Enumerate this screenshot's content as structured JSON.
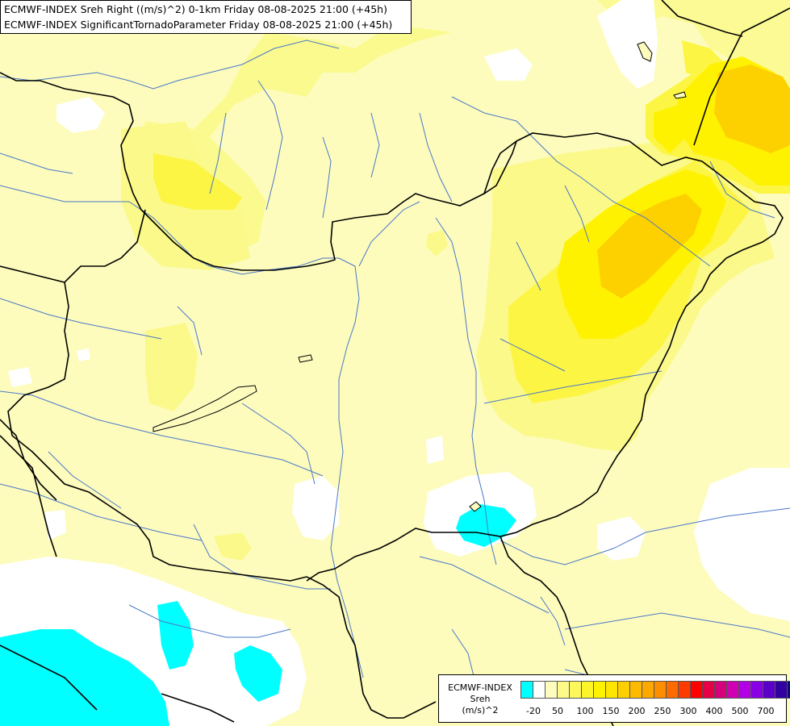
{
  "title": {
    "line1": "ECMWF-INDEX Sreh Right ((m/s)^2) 0-1km Friday 08-08-2025 21:00 (+45h)",
    "line2": "ECMWF-INDEX SignificantTornadoParameter Friday 08-08-2025 21:00 (+45h)"
  },
  "legend": {
    "label_lines": [
      "ECMWF-INDEX",
      "Sreh",
      "(m/s)^2"
    ],
    "colors": [
      "#00ffff",
      "#ffffff",
      "#fdfcbd",
      "#fdfa8a",
      "#fcf85c",
      "#fbf52a",
      "#fff200",
      "#ffe600",
      "#fdcf00",
      "#fcbb00",
      "#fca800",
      "#fc8f00",
      "#fc6a00",
      "#fd3a00",
      "#ff0000",
      "#e60046",
      "#d6007a",
      "#d000b4",
      "#b400e6",
      "#8a00e6",
      "#5a00c8",
      "#3200a0",
      "#0a0a78"
    ],
    "tick_labels": [
      "-20",
      "50",
      "100",
      "150",
      "200",
      "250",
      "300",
      "400",
      "500",
      "700"
    ]
  },
  "map": {
    "background_color": "#fdfcbd",
    "cyan_color": "#00ffff",
    "yellow_light": "#fbf98a",
    "yellow_mid": "#fcf544",
    "yellow_strong": "#fff200",
    "orange": "#fdd000"
  }
}
